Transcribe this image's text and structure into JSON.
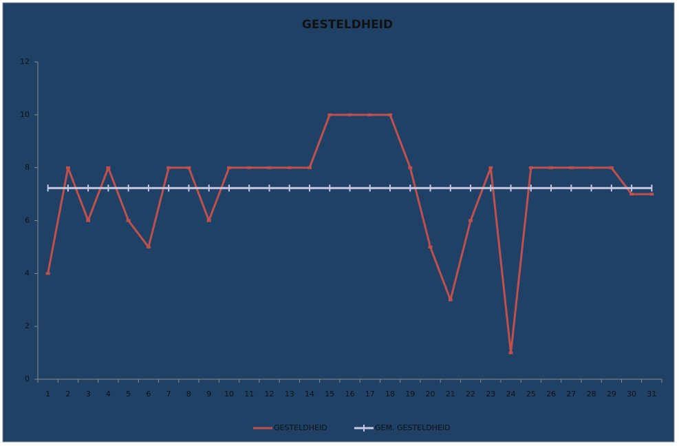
{
  "chart_data": {
    "type": "line",
    "title": "GESTELDHEID",
    "categories": [
      "1",
      "2",
      "3",
      "4",
      "5",
      "6",
      "7",
      "8",
      "9",
      "10",
      "11",
      "12",
      "13",
      "14",
      "15",
      "16",
      "17",
      "18",
      "19",
      "20",
      "21",
      "22",
      "23",
      "24",
      "25",
      "26",
      "27",
      "28",
      "29",
      "30",
      "31"
    ],
    "series": [
      {
        "name": "GESTELDHEID",
        "color": "#c0504d",
        "values": [
          4,
          8,
          6,
          8,
          6,
          5,
          8,
          8,
          6,
          8,
          8,
          8,
          8,
          8,
          10,
          10,
          10,
          10,
          8,
          5,
          3,
          6,
          8,
          1,
          8,
          8,
          8,
          8,
          8,
          7,
          7
        ]
      },
      {
        "name": "GEM. GESTELDHEID",
        "color": "#c9c9e3",
        "values": [
          7.23,
          7.23,
          7.23,
          7.23,
          7.23,
          7.23,
          7.23,
          7.23,
          7.23,
          7.23,
          7.23,
          7.23,
          7.23,
          7.23,
          7.23,
          7.23,
          7.23,
          7.23,
          7.23,
          7.23,
          7.23,
          7.23,
          7.23,
          7.23,
          7.23,
          7.23,
          7.23,
          7.23,
          7.23,
          7.23,
          7.23
        ]
      }
    ],
    "ylim": [
      0,
      12
    ],
    "yticks": [
      0,
      2,
      4,
      6,
      8,
      10,
      12
    ],
    "grid": false,
    "legend": "bottom"
  }
}
